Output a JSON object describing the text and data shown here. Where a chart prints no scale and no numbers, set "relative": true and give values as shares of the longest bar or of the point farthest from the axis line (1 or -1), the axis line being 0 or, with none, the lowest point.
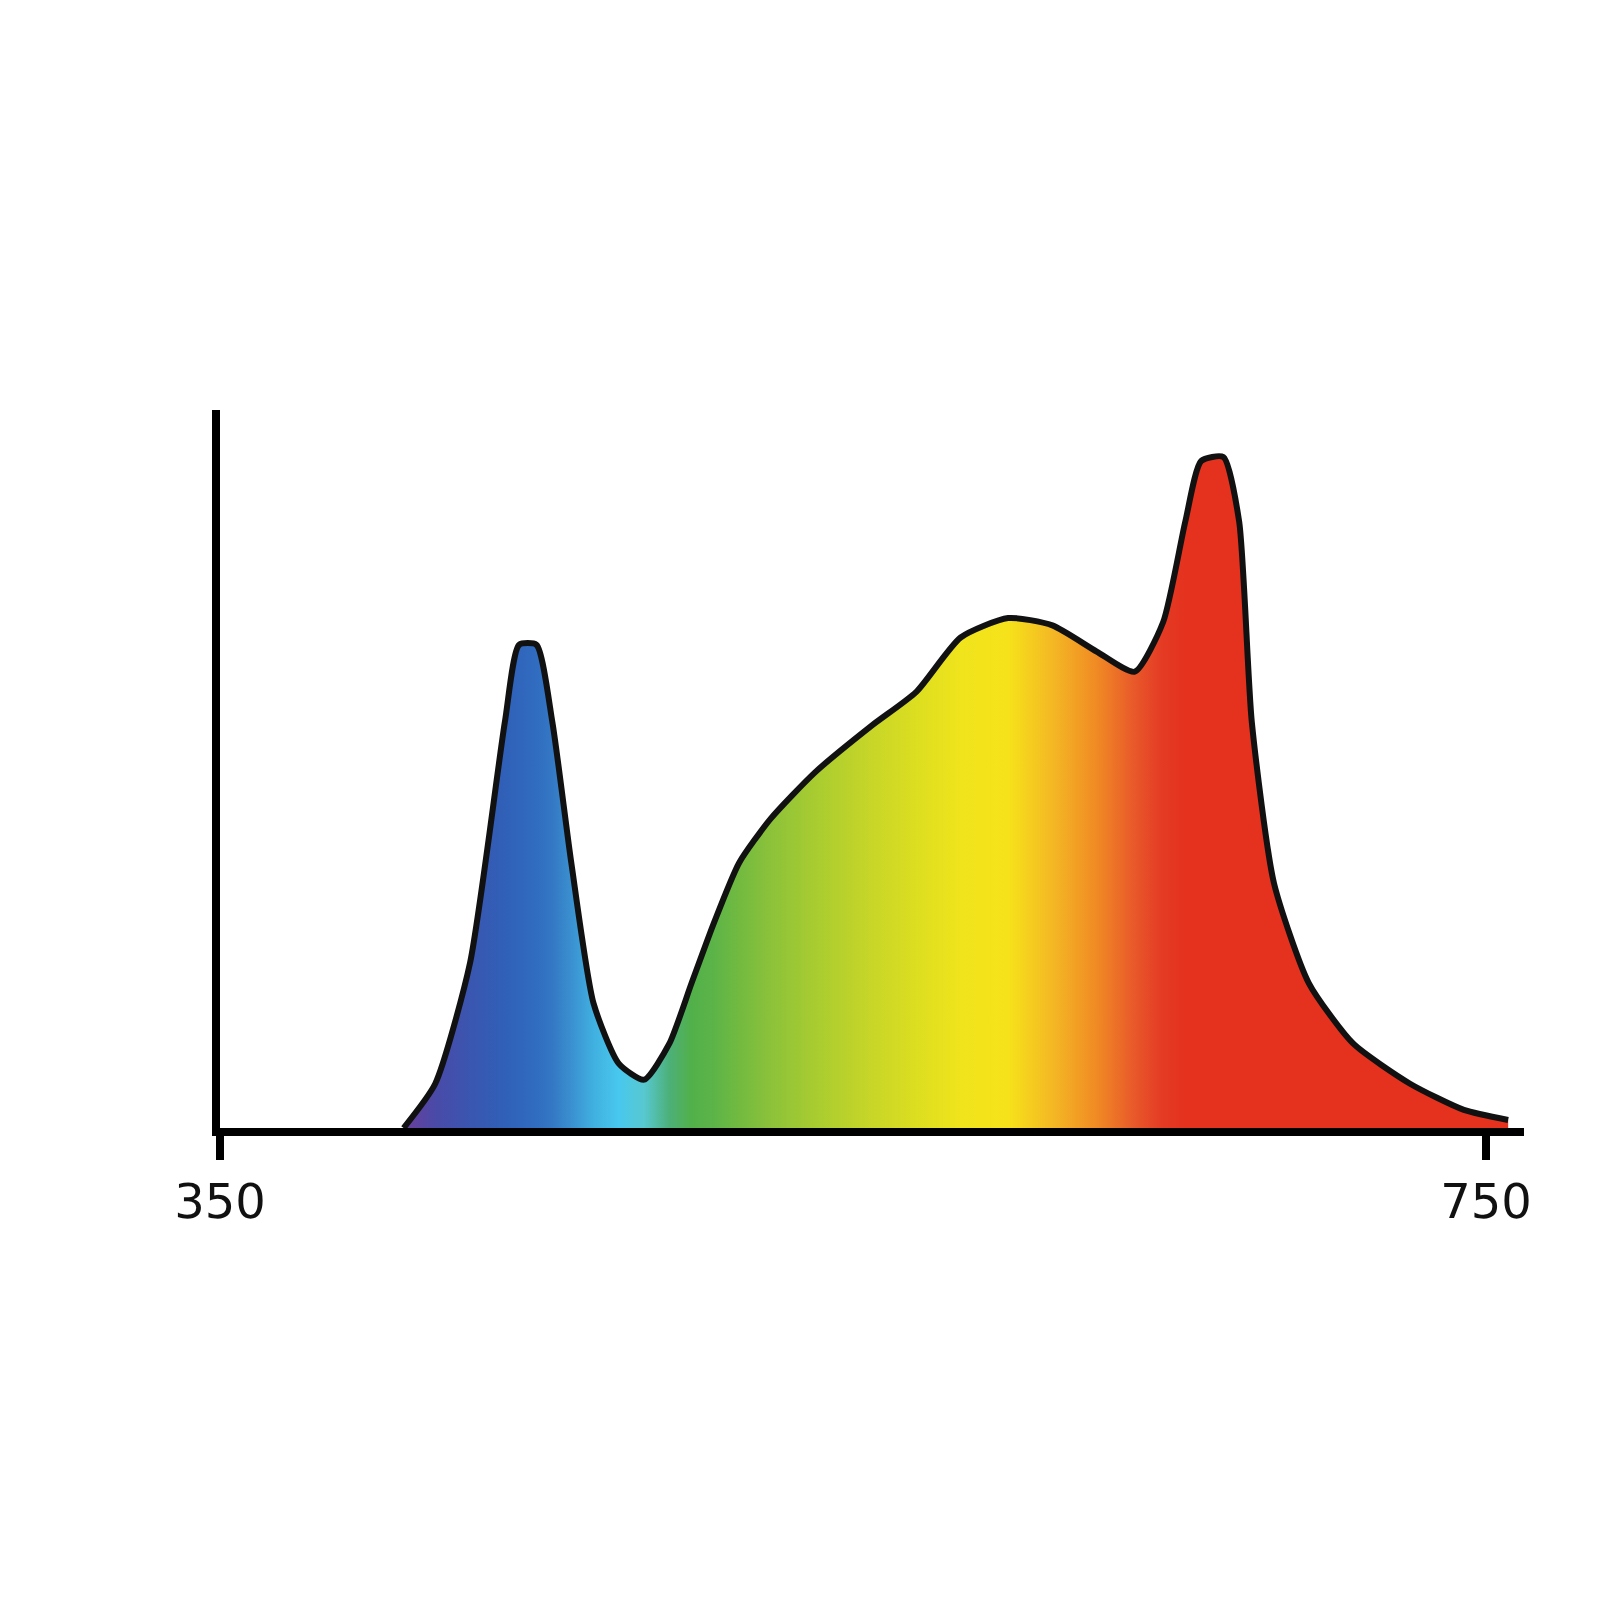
{
  "chart_data": {
    "type": "area",
    "relative": true,
    "grid": false,
    "xlim": [
      350,
      762
    ],
    "xticks": [
      350,
      750
    ],
    "series": [
      {
        "color": "#111111",
        "x": [
          408,
          418,
          429,
          440,
          444.5,
          450,
          455,
          461,
          468,
          476,
          484,
          492,
          499,
          506,
          514,
          524,
          538,
          556,
          570,
          584,
          599,
          613,
          627,
          639,
          648,
          655,
          660,
          667,
          672,
          676,
          683,
          694,
          708,
          726,
          743,
          757
        ],
        "values": [
          0,
          0.066,
          0.246,
          0.605,
          0.72,
          0.72,
          0.605,
          0.395,
          0.186,
          0.096,
          0.072,
          0.126,
          0.216,
          0.305,
          0.395,
          0.461,
          0.53,
          0.6,
          0.65,
          0.731,
          0.76,
          0.749,
          0.71,
          0.68,
          0.754,
          0.904,
          0.994,
          1.0,
          0.904,
          0.605,
          0.365,
          0.216,
          0.126,
          0.066,
          0.027,
          0.012
        ],
        "colors": [
          "#6a3f9a",
          "#4a4aa8",
          "#3a56b0",
          "#3060b8",
          "#3066bc",
          "#306cc0",
          "#3478c4",
          "#3a90d0",
          "#40b0e0",
          "#48c8ee",
          "#58c8d0",
          "#4cb078",
          "#52b04a",
          "#5cb448",
          "#72ba40",
          "#8cc23a",
          "#a8cc30",
          "#c8d628",
          "#dcde20",
          "#f0e41c",
          "#f6e21a",
          "#f4b824",
          "#f08a24",
          "#e8582a",
          "#e43a24",
          "#e4321e",
          "#e4321e",
          "#e4321e",
          "#e4321e",
          "#e4321e",
          "#e4321e",
          "#e4321e",
          "#e4321e",
          "#e4321e",
          "#e4321e",
          "#e4321e"
        ]
      }
    ]
  }
}
